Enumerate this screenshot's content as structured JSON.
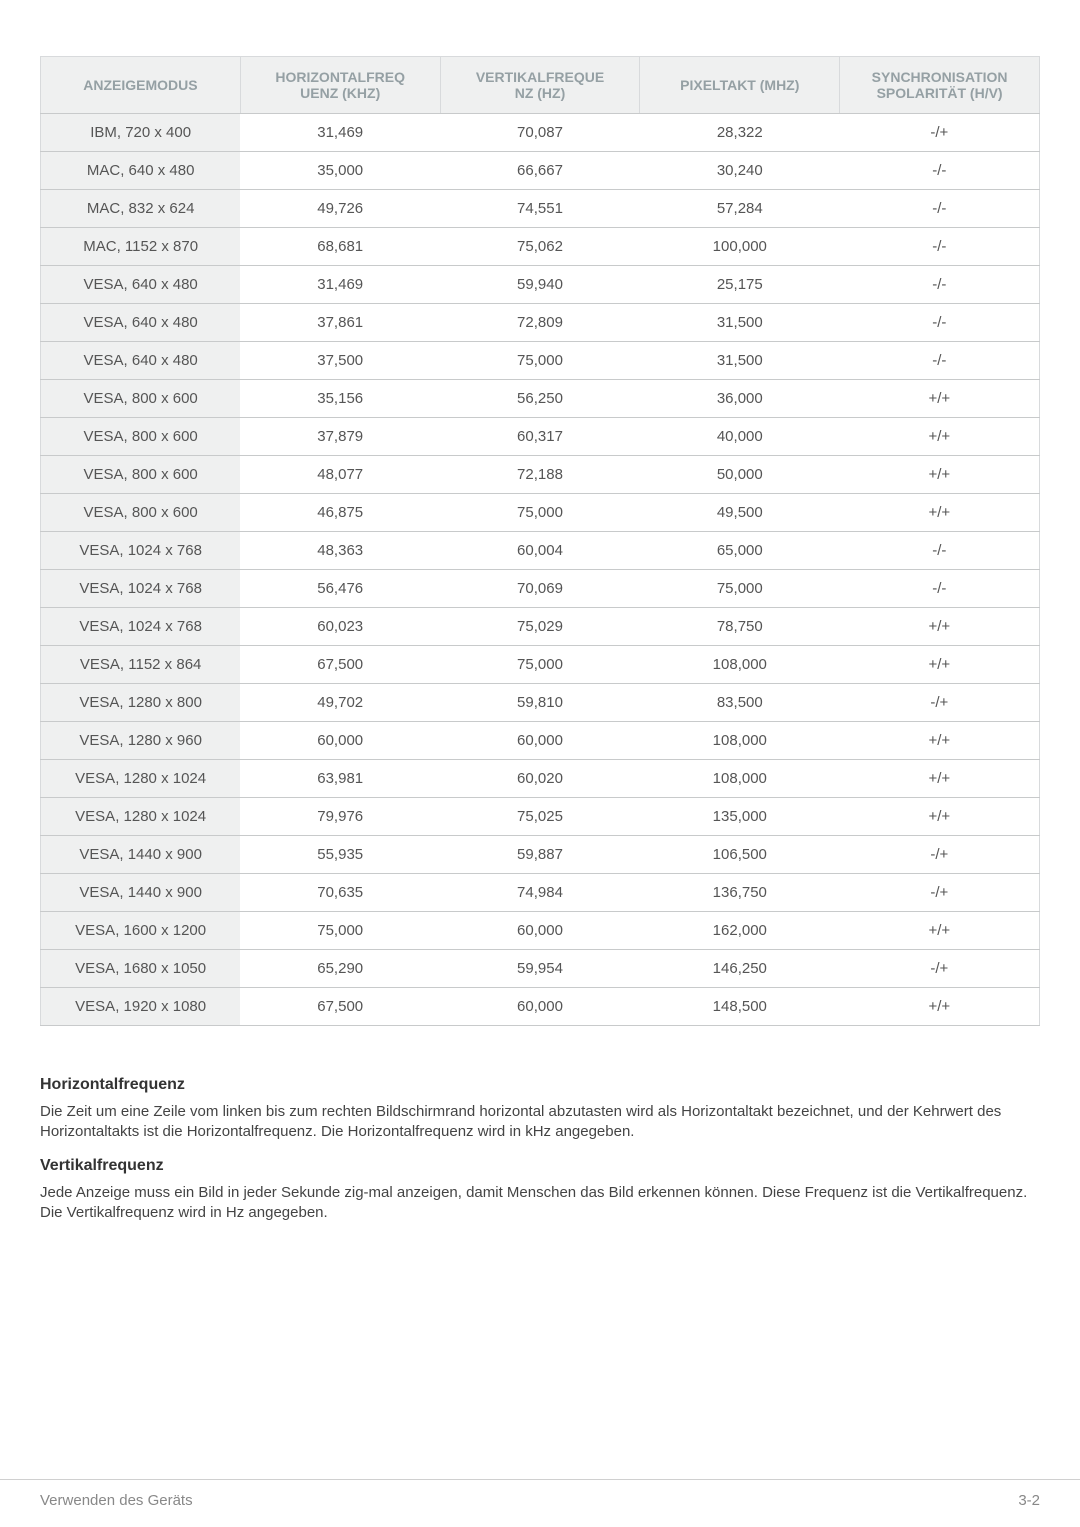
{
  "table": {
    "columns": [
      "ANZEIGEMODUS",
      "HORIZONTALFREQ\nUENZ (KHZ)",
      "VERTIKALFREQUE\nNZ (HZ)",
      "PIXELTAKT (MHZ)",
      "SYNCHRONISATION\nSPOLARITÄT (H/V)"
    ],
    "header_bg": "#eff0f0",
    "header_color": "#95a0a4",
    "firstcol_bg": "#eff0f0",
    "border_color": "#d8dadc",
    "row_border_color": "#c8cacb",
    "rows": [
      [
        "IBM, 720 x 400",
        "31,469",
        "70,087",
        "28,322",
        "-/+"
      ],
      [
        "MAC, 640 x 480",
        "35,000",
        "66,667",
        "30,240",
        "-/-"
      ],
      [
        "MAC, 832 x 624",
        "49,726",
        "74,551",
        "57,284",
        "-/-"
      ],
      [
        "MAC, 1152 x 870",
        "68,681",
        "75,062",
        "100,000",
        "-/-"
      ],
      [
        "VESA, 640 x 480",
        "31,469",
        "59,940",
        "25,175",
        "-/-"
      ],
      [
        "VESA, 640 x 480",
        "37,861",
        "72,809",
        "31,500",
        "-/-"
      ],
      [
        "VESA, 640 x 480",
        "37,500",
        "75,000",
        "31,500",
        "-/-"
      ],
      [
        "VESA, 800 x 600",
        "35,156",
        "56,250",
        "36,000",
        "+/+"
      ],
      [
        "VESA, 800 x 600",
        "37,879",
        "60,317",
        "40,000",
        "+/+"
      ],
      [
        "VESA, 800 x 600",
        "48,077",
        "72,188",
        "50,000",
        "+/+"
      ],
      [
        "VESA, 800 x 600",
        "46,875",
        "75,000",
        "49,500",
        "+/+"
      ],
      [
        "VESA, 1024 x 768",
        "48,363",
        "60,004",
        "65,000",
        "-/-"
      ],
      [
        "VESA, 1024 x 768",
        "56,476",
        "70,069",
        "75,000",
        "-/-"
      ],
      [
        "VESA, 1024 x 768",
        "60,023",
        "75,029",
        "78,750",
        "+/+"
      ],
      [
        "VESA, 1152 x 864",
        "67,500",
        "75,000",
        "108,000",
        "+/+"
      ],
      [
        "VESA, 1280 x 800",
        "49,702",
        "59,810",
        "83,500",
        "-/+"
      ],
      [
        "VESA, 1280 x 960",
        "60,000",
        "60,000",
        "108,000",
        "+/+"
      ],
      [
        "VESA, 1280 x 1024",
        "63,981",
        "60,020",
        "108,000",
        "+/+"
      ],
      [
        "VESA, 1280 x 1024",
        "79,976",
        "75,025",
        "135,000",
        "+/+"
      ],
      [
        "VESA, 1440 x 900",
        "55,935",
        "59,887",
        "106,500",
        "-/+"
      ],
      [
        "VESA, 1440 x 900",
        "70,635",
        "74,984",
        "136,750",
        "-/+"
      ],
      [
        "VESA, 1600 x 1200",
        "75,000",
        "60,000",
        "162,000",
        "+/+"
      ],
      [
        "VESA, 1680 x 1050",
        "65,290",
        "59,954",
        "146,250",
        "-/+"
      ],
      [
        "VESA, 1920 x 1080",
        "67,500",
        "60,000",
        "148,500",
        "+/+"
      ]
    ]
  },
  "sections": {
    "hfreq_title": "Horizontalfrequenz",
    "hfreq_text": "Die Zeit um eine Zeile vom linken bis zum rechten Bildschirmrand horizontal abzutasten wird als Horizontaltakt bezeichnet, und der Kehrwert des Horizontaltakts ist die Horizontalfrequenz. Die Horizontalfrequenz wird in kHz angegeben.",
    "vfreq_title": "Vertikalfrequenz",
    "vfreq_text": "Jede Anzeige muss ein Bild in jeder Sekunde zig-mal anzeigen, damit Menschen das Bild erkennen können. Diese Frequenz ist die Vertikalfrequenz. Die Vertikalfrequenz wird in Hz angegeben."
  },
  "footer": {
    "left": "Verwenden des Geräts",
    "right": "3-2"
  }
}
